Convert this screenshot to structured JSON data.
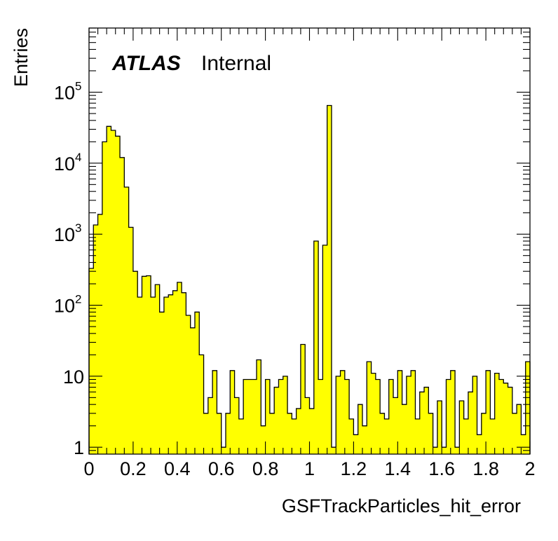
{
  "chart_data": {
    "type": "histogram",
    "label": {
      "experiment": "ATLAS",
      "status": "Internal"
    },
    "xlabel": "GSFTrackParticles_hit_error",
    "ylabel": "Entries",
    "xlim": [
      0,
      2
    ],
    "ylim": [
      0.8,
      800000
    ],
    "yscale": "log",
    "bin_width": 0.02,
    "fill_color": "#ffff00",
    "x_ticks": [
      "0",
      "0.2",
      "0.4",
      "0.6",
      "0.8",
      "1",
      "1.2",
      "1.4",
      "1.6",
      "1.8",
      "2"
    ],
    "y_ticks": [
      {
        "base": "1",
        "exp": ""
      },
      {
        "base": "10",
        "exp": ""
      },
      {
        "base": "10",
        "exp": "2"
      },
      {
        "base": "10",
        "exp": "3"
      },
      {
        "base": "10",
        "exp": "4"
      },
      {
        "base": "10",
        "exp": "5"
      }
    ],
    "values": [
      330,
      1350,
      1900,
      20000,
      33000,
      29000,
      24000,
      12000,
      4600,
      1250,
      300,
      130,
      255,
      260,
      130,
      195,
      80,
      130,
      140,
      160,
      210,
      150,
      72,
      48,
      80,
      20,
      3,
      5,
      12,
      3,
      1,
      3,
      12,
      5,
      2.5,
      9,
      9,
      9,
      17,
      2,
      9,
      3,
      7,
      9,
      10,
      3,
      2.5,
      3.5,
      28,
      5,
      3.5,
      800,
      9,
      700,
      65000,
      1,
      10,
      12,
      9,
      2.5,
      1.5,
      4,
      2,
      16,
      11,
      9,
      3,
      2.5,
      9,
      5,
      12,
      4,
      10,
      12,
      2.5,
      6,
      7,
      3,
      1,
      4.5,
      1,
      9,
      12,
      1,
      4.5,
      2.5,
      6,
      10,
      1.5,
      3,
      12,
      2.5,
      11,
      9,
      8,
      7,
      3,
      4,
      1.5,
      16
    ]
  }
}
